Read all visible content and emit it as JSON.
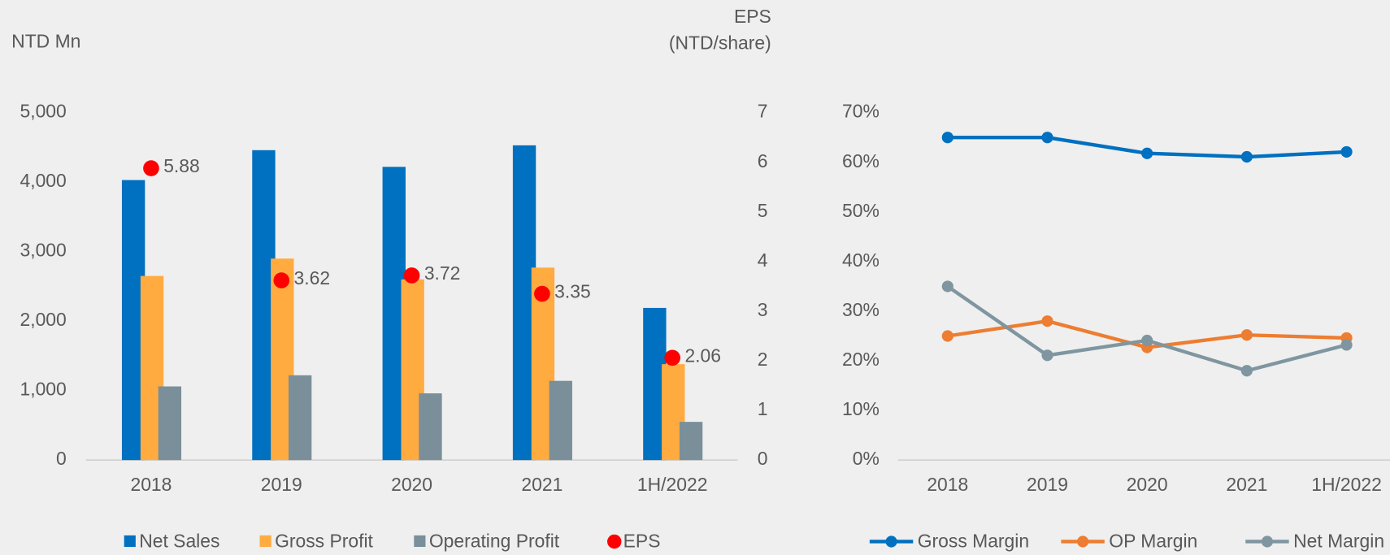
{
  "chart_data": [
    {
      "type": "bar",
      "ylabel": "NTD Mn",
      "y2label": [
        "EPS",
        "(NTD/share)"
      ],
      "categories": [
        "2018",
        "2019",
        "2020",
        "2021",
        "1H/2022"
      ],
      "series": [
        {
          "name": "Net Sales",
          "color": "#0070c0",
          "values": [
            4030,
            4460,
            4220,
            4530,
            2190
          ]
        },
        {
          "name": "Gross Profit",
          "color": "#ffab40",
          "values": [
            2650,
            2900,
            2600,
            2770,
            1380
          ]
        },
        {
          "name": "Operating Profit",
          "color": "#7a8f9a",
          "values": [
            1060,
            1220,
            960,
            1140,
            550
          ]
        },
        {
          "name": "EPS",
          "color": "#ff0000",
          "axis": "y2",
          "values": [
            5.88,
            3.62,
            3.72,
            3.35,
            2.06
          ]
        }
      ],
      "ylim": [
        0,
        5000
      ],
      "yticks": [
        0,
        {
          "value": 1000,
          "label": "1,000"
        },
        {
          "value": 2000,
          "label": "2,000"
        },
        {
          "value": 3000,
          "label": "3,000"
        },
        {
          "value": 4000,
          "label": "4,000"
        },
        {
          "value": 5000,
          "label": "5,000"
        }
      ],
      "y2lim": [
        0,
        7
      ],
      "y2ticks": [
        0,
        1,
        2,
        3,
        4,
        5,
        6,
        7
      ],
      "grid": false
    },
    {
      "type": "line",
      "categories": [
        "2018",
        "2019",
        "2020",
        "2021",
        "1H/2022"
      ],
      "series": [
        {
          "name": "Gross Margin",
          "color": "#0070c0",
          "values": [
            65,
            65,
            61.8,
            61.1,
            62.1
          ]
        },
        {
          "name": "OP Margin",
          "color": "#ed7d31",
          "values": [
            25,
            28,
            22.7,
            25.2,
            24.6
          ]
        },
        {
          "name": "Net Margin",
          "color": "#7f96a0",
          "values": [
            35,
            21.1,
            24.1,
            18,
            23.2
          ]
        }
      ],
      "ylim": [
        0,
        70
      ],
      "yticks": [
        {
          "value": 0,
          "label": "0%"
        },
        {
          "value": 10,
          "label": "10%"
        },
        {
          "value": 20,
          "label": "20%"
        },
        {
          "value": 30,
          "label": "30%"
        },
        {
          "value": 40,
          "label": "40%"
        },
        {
          "value": 50,
          "label": "50%"
        },
        {
          "value": 60,
          "label": "60%"
        },
        {
          "value": 70,
          "label": "70%"
        }
      ],
      "grid": false
    }
  ]
}
